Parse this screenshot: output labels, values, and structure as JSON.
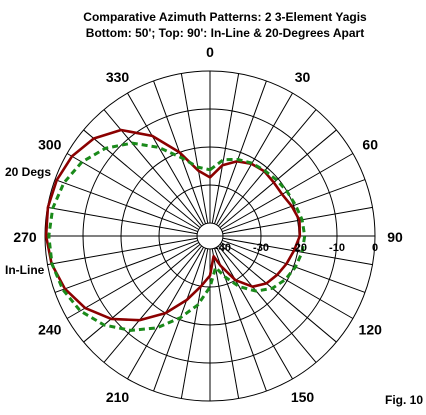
{
  "chart_data": {
    "type": "polar-line",
    "title": "Comparative Azimuth Patterns:  2 3-Element Yagis",
    "subtitle": "Bottom: 50'; Top: 90':  In-Line & 20-Degrees Apart",
    "figure_label": "Fig. 10",
    "angle_ticks": [
      "0",
      "30",
      "60",
      "90",
      "120",
      "150",
      "180",
      "210",
      "240",
      "270",
      "300",
      "330"
    ],
    "radial_ticks": [
      "-40",
      "-30",
      "-20",
      "-10",
      "0"
    ],
    "radial_range_db": [
      -40,
      0
    ],
    "grid": true,
    "series": [
      {
        "name": "20 Degs",
        "color": "#8b0000",
        "style": "solid",
        "points": [
          [
            0,
            -28
          ],
          [
            10,
            -24.5
          ],
          [
            20,
            -22.5
          ],
          [
            30,
            -21.5
          ],
          [
            40,
            -21.2
          ],
          [
            50,
            -21.5
          ],
          [
            60,
            -21.5
          ],
          [
            70,
            -20.5
          ],
          [
            80,
            -19.5
          ],
          [
            90,
            -19.8
          ],
          [
            100,
            -21
          ],
          [
            110,
            -22
          ],
          [
            120,
            -23
          ],
          [
            130,
            -24
          ],
          [
            140,
            -26
          ],
          [
            150,
            -30
          ],
          [
            160,
            -35
          ],
          [
            170,
            -38
          ],
          [
            180,
            -33
          ],
          [
            190,
            -30
          ],
          [
            200,
            -25.5
          ],
          [
            210,
            -20
          ],
          [
            220,
            -14.5
          ],
          [
            230,
            -9.5
          ],
          [
            240,
            -5.5
          ],
          [
            250,
            -2.8
          ],
          [
            260,
            -1.1
          ],
          [
            270,
            -0.3
          ],
          [
            280,
            -0.1
          ],
          [
            290,
            -0.5
          ],
          [
            300,
            -1.5
          ],
          [
            310,
            -3.5
          ],
          [
            320,
            -7
          ],
          [
            330,
            -13
          ],
          [
            340,
            -20
          ],
          [
            350,
            -26
          ]
        ]
      },
      {
        "name": "In-Line",
        "color": "#1a8a1a",
        "style": "dashed",
        "points": [
          [
            0,
            -26
          ],
          [
            10,
            -23
          ],
          [
            20,
            -22
          ],
          [
            30,
            -21.3
          ],
          [
            40,
            -21
          ],
          [
            50,
            -20.5
          ],
          [
            60,
            -20
          ],
          [
            70,
            -19.5
          ],
          [
            80,
            -18.8
          ],
          [
            90,
            -18.5
          ],
          [
            100,
            -18.8
          ],
          [
            110,
            -19.5
          ],
          [
            120,
            -20.5
          ],
          [
            130,
            -22
          ],
          [
            140,
            -24.5
          ],
          [
            150,
            -28
          ],
          [
            160,
            -32
          ],
          [
            170,
            -35
          ],
          [
            180,
            -30
          ],
          [
            190,
            -25
          ],
          [
            200,
            -20.5
          ],
          [
            210,
            -15.5
          ],
          [
            220,
            -11
          ],
          [
            230,
            -7
          ],
          [
            240,
            -4
          ],
          [
            250,
            -2.2
          ],
          [
            260,
            -1.2
          ],
          [
            270,
            -1
          ],
          [
            280,
            -1.4
          ],
          [
            290,
            -2.5
          ],
          [
            300,
            -4.5
          ],
          [
            310,
            -7.5
          ],
          [
            320,
            -11.5
          ],
          [
            330,
            -16.5
          ],
          [
            340,
            -21.5
          ],
          [
            350,
            -25
          ]
        ]
      }
    ]
  }
}
